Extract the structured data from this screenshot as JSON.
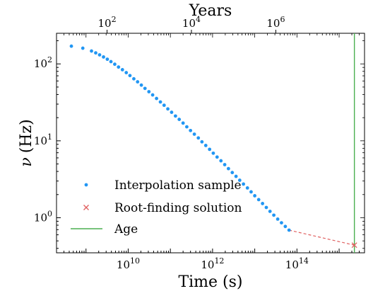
{
  "chart_data": {
    "type": "scatter",
    "xlabel": "Time (s)",
    "x2label": "Years",
    "ylabel_symbol": "ν",
    "ylabel_unit": "(Hz)",
    "xscale": "log",
    "yscale": "log",
    "xlim": [
      200000000,
      4000000000000000
    ],
    "ylim": [
      0.35,
      250
    ],
    "x_ticks": [
      {
        "value": 10000000000,
        "base": "10",
        "exp": "10"
      },
      {
        "value": 1000000000000,
        "base": "10",
        "exp": "12"
      },
      {
        "value": 100000000000000,
        "base": "10",
        "exp": "14"
      }
    ],
    "x2_ticks": [
      {
        "value_years": 100,
        "base": "10",
        "exp": "2"
      },
      {
        "value_years": 10000,
        "base": "10",
        "exp": "4"
      },
      {
        "value_years": 1000000,
        "base": "10",
        "exp": "6"
      }
    ],
    "y_ticks": [
      {
        "value": 1,
        "base": "10",
        "exp": "0"
      },
      {
        "value": 10,
        "base": "10",
        "exp": "1"
      },
      {
        "value": 100,
        "base": "10",
        "exp": "2"
      }
    ],
    "seconds_per_year": 31557600,
    "series": [
      {
        "name": "Interpolation sample",
        "type": "scatter",
        "color": "#2196f3",
        "x": [
          450000000.0,
          840000000.0,
          1350000000.0,
          1700000000.0,
          2100000000.0,
          2600000000.0,
          3200000000.0,
          3900000000.0,
          4800000000.0,
          5900000000.0,
          7300000000.0,
          9000000000.0,
          11000000000.0,
          13600000000.0,
          16700000000.0,
          20500000000.0,
          25000000000.0,
          31000000000.0,
          38000000000.0,
          47000000000.0,
          58000000000.0,
          71000000000.0,
          87000000000.0,
          107000000000.0,
          132000000000.0,
          162000000000.0,
          200000000000.0,
          245000000000.0,
          300000000000.0,
          370000000000.0,
          460000000000.0,
          560000000000.0,
          690000000000.0,
          850000000000.0,
          1040000000000.0,
          1280000000000.0,
          1580000000000.0,
          1940000000000.0,
          2380000000000.0,
          2930000000000.0,
          3600000000000.0,
          4400000000000.0,
          5400000000000.0,
          6700000000000.0,
          8200000000000.0,
          10000000000000.0,
          12400000000000.0,
          15300000000000.0,
          18800000000000.0,
          23000000000000.0,
          28300000000000.0,
          35000000000000.0,
          43000000000000.0,
          53000000000000.0,
          65000000000000.0
        ],
        "y": [
          170,
          160,
          147,
          139,
          131,
          123,
          115,
          107,
          99,
          91,
          84,
          77,
          70.5,
          64,
          58.5,
          53,
          48,
          43.5,
          39.5,
          35.5,
          32,
          29,
          26,
          23.5,
          21,
          19,
          17,
          15.2,
          13.6,
          12.2,
          10.9,
          9.7,
          8.7,
          7.75,
          6.9,
          6.15,
          5.5,
          4.9,
          4.35,
          3.87,
          3.45,
          3.07,
          2.74,
          2.44,
          2.17,
          1.93,
          1.72,
          1.53,
          1.36,
          1.21,
          1.08,
          0.96,
          0.86,
          0.77,
          0.69
        ]
      },
      {
        "name": "Root-finding solution",
        "type": "line+marker",
        "color": "#e06060",
        "x": [
          65000000000000.0,
          2300000000000000.0
        ],
        "y": [
          0.69,
          0.44
        ]
      },
      {
        "name": "Age",
        "type": "vline",
        "color": "#4caf50",
        "x": 2300000000000000.0
      }
    ],
    "legend_position": "lower-left",
    "grid": false
  }
}
